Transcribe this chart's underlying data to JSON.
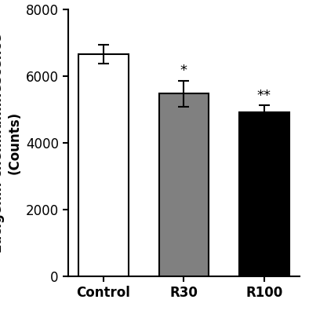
{
  "categories": [
    "Control",
    "R30",
    "R100"
  ],
  "values": [
    6650,
    5480,
    4920
  ],
  "errors": [
    280,
    390,
    210
  ],
  "bar_colors": [
    "#ffffff",
    "#808080",
    "#000000"
  ],
  "bar_edgecolors": [
    "#000000",
    "#000000",
    "#000000"
  ],
  "significance": [
    "",
    "*",
    "**"
  ],
  "ylabel_line2": "(Counts)",
  "ylim": [
    0,
    8000
  ],
  "yticks": [
    0,
    2000,
    4000,
    6000,
    8000
  ],
  "bar_width": 0.62,
  "capsize": 5,
  "tick_fontsize": 12,
  "label_fontsize": 12,
  "sig_fontsize": 13
}
